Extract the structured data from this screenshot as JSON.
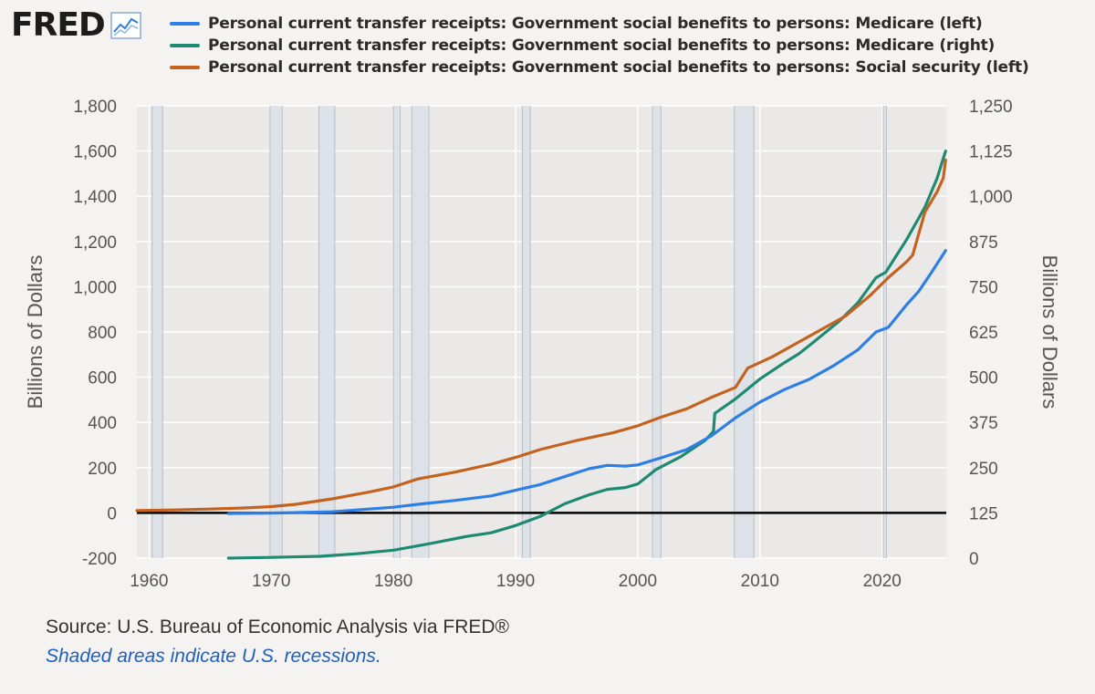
{
  "logo": {
    "text": "FRED",
    "icon": "trend-chart-icon"
  },
  "colors": {
    "background": "#f4f3f2",
    "plot_bg": "#ebe9e7",
    "grid": "#ffffff",
    "recession": "#dde2e8",
    "recession_border": "#b7bec8",
    "zero_line": "#000000",
    "medicare_left": "#2d7fe6",
    "medicare_right": "#1f8a72",
    "social_security": "#c4621f"
  },
  "source_text": "Source: U.S. Bureau of Economic Analysis via FRED®",
  "recession_note": "Shaded areas indicate U.S. recessions.",
  "chart_data": {
    "type": "line",
    "legend_position": "top",
    "grid": true,
    "x_ticks": [
      "1960",
      "1970",
      "1980",
      "1990",
      "2000",
      "2010",
      "2020"
    ],
    "y_left": {
      "label": "Billions of Dollars",
      "range": [
        -200,
        1800
      ],
      "ticks": [
        "1,800",
        "1,600",
        "1,400",
        "1,200",
        "1,000",
        "800",
        "600",
        "400",
        "200",
        "0",
        "-200"
      ]
    },
    "y_right": {
      "label": "Billions of Dollars",
      "range": [
        0,
        1250
      ],
      "ticks": [
        "1,250",
        "1,125",
        "1,000",
        "875",
        "750",
        "625",
        "500",
        "375",
        "250",
        "125",
        "0"
      ]
    },
    "x_range": [
      1959,
      2025.25
    ],
    "zero_line_left": 0,
    "recessions": [
      [
        1960.25,
        1961.1
      ],
      [
        1969.9,
        1970.9
      ],
      [
        1973.9,
        1975.2
      ],
      [
        1980.0,
        1980.55
      ],
      [
        1981.5,
        1982.9
      ],
      [
        1990.55,
        1991.2
      ],
      [
        2001.2,
        2001.9
      ],
      [
        2007.9,
        2009.5
      ],
      [
        2020.1,
        2020.35
      ]
    ],
    "series": [
      {
        "name": "Personal current transfer receipts: Government social benefits to persons: Medicare (left)",
        "axis": "left",
        "color": "#2d7fe6",
        "points": [
          [
            1966.5,
            -3
          ],
          [
            1970,
            -1
          ],
          [
            1975,
            5
          ],
          [
            1980,
            25
          ],
          [
            1982,
            38
          ],
          [
            1985,
            55
          ],
          [
            1988,
            75
          ],
          [
            1990,
            100
          ],
          [
            1992,
            125
          ],
          [
            1994,
            160
          ],
          [
            1996,
            195
          ],
          [
            1997.5,
            210
          ],
          [
            1999,
            207
          ],
          [
            2000,
            212
          ],
          [
            2002,
            245
          ],
          [
            2004,
            280
          ],
          [
            2006,
            340
          ],
          [
            2008,
            420
          ],
          [
            2010,
            490
          ],
          [
            2012,
            545
          ],
          [
            2013.2,
            572
          ],
          [
            2014,
            590
          ],
          [
            2016,
            650
          ],
          [
            2018,
            720
          ],
          [
            2019.5,
            800
          ],
          [
            2020.5,
            820
          ],
          [
            2022,
            920
          ],
          [
            2023,
            980
          ],
          [
            2024,
            1060
          ],
          [
            2025.2,
            1160
          ]
        ]
      },
      {
        "name": "Personal current transfer receipts: Government social benefits to persons: Medicare (right)",
        "axis": "right",
        "color": "#1f8a72",
        "points": [
          [
            1966.5,
            0
          ],
          [
            1970,
            2
          ],
          [
            1974,
            5
          ],
          [
            1977,
            12
          ],
          [
            1980,
            22
          ],
          [
            1983,
            40
          ],
          [
            1986,
            60
          ],
          [
            1988,
            70
          ],
          [
            1990,
            90
          ],
          [
            1992,
            115
          ],
          [
            1994,
            150
          ],
          [
            1996,
            175
          ],
          [
            1997.5,
            190
          ],
          [
            1999,
            195
          ],
          [
            2000,
            205
          ],
          [
            2001.5,
            245
          ],
          [
            2003.5,
            280
          ],
          [
            2005.5,
            325
          ],
          [
            2006.2,
            350
          ],
          [
            2006.3,
            400
          ],
          [
            2008,
            440
          ],
          [
            2010,
            495
          ],
          [
            2012,
            540
          ],
          [
            2013.2,
            565
          ],
          [
            2014.5,
            600
          ],
          [
            2016.5,
            655
          ],
          [
            2018,
            705
          ],
          [
            2019.5,
            775
          ],
          [
            2020.3,
            790
          ],
          [
            2022,
            880
          ],
          [
            2023.5,
            970
          ],
          [
            2024.5,
            1050
          ],
          [
            2025.2,
            1125
          ]
        ]
      },
      {
        "name": "Personal current transfer receipts: Government social benefits to persons: Social security (left)",
        "axis": "left",
        "color": "#c4621f",
        "points": [
          [
            1959,
            10
          ],
          [
            1962,
            13
          ],
          [
            1965,
            17
          ],
          [
            1968,
            22
          ],
          [
            1970,
            28
          ],
          [
            1972,
            38
          ],
          [
            1975,
            62
          ],
          [
            1978,
            92
          ],
          [
            1980,
            115
          ],
          [
            1982,
            150
          ],
          [
            1985,
            180
          ],
          [
            1988,
            215
          ],
          [
            1990,
            245
          ],
          [
            1992,
            280
          ],
          [
            1995,
            320
          ],
          [
            1998,
            355
          ],
          [
            2000,
            385
          ],
          [
            2002,
            425
          ],
          [
            2004,
            460
          ],
          [
            2006,
            510
          ],
          [
            2008,
            555
          ],
          [
            2009,
            640
          ],
          [
            2011,
            690
          ],
          [
            2013,
            750
          ],
          [
            2015,
            810
          ],
          [
            2017,
            870
          ],
          [
            2019,
            960
          ],
          [
            2020.5,
            1040
          ],
          [
            2022,
            1110
          ],
          [
            2022.5,
            1140
          ],
          [
            2023.5,
            1330
          ],
          [
            2024.5,
            1420
          ],
          [
            2025,
            1480
          ],
          [
            2025.2,
            1560
          ]
        ]
      }
    ]
  }
}
